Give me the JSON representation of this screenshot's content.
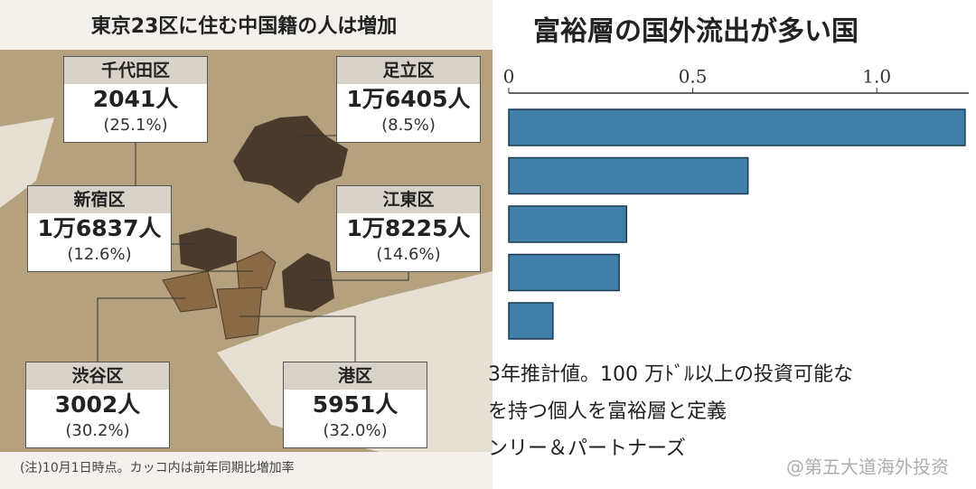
{
  "map": {
    "title": "東京23区に住む中国籍の人は増加",
    "districts": [
      {
        "name": "千代田区",
        "count": "2041人",
        "pct": "(25.1%)"
      },
      {
        "name": "足立区",
        "count": "1万6405人",
        "pct": "(8.5%)"
      },
      {
        "name": "新宿区",
        "count": "1万6837人",
        "pct": "(12.6%)"
      },
      {
        "name": "江東区",
        "count": "1万8225人",
        "pct": "(14.6%)"
      },
      {
        "name": "渋谷区",
        "count": "3002人",
        "pct": "(30.2%)"
      },
      {
        "name": "港区",
        "count": "5951人",
        "pct": "(32.0%)"
      }
    ],
    "note": "(注)10月1日時点。カッコ内は前年同期比増加率"
  },
  "chart_data": {
    "type": "hbar",
    "title": "富裕層の国外流出が多い国",
    "categories": [
      null,
      null,
      null,
      null,
      null
    ],
    "values": [
      1.24,
      0.65,
      0.32,
      0.3,
      0.12
    ],
    "color": "#3f7fa8",
    "xlim": [
      0,
      1.25
    ],
    "xticks": [
      0,
      0.5,
      {
        "value": 1,
        "label": "1.0"
      }
    ],
    "footnotes": [
      "3年推計値。100 万ﾄﾞﾙ以上の投資可能な",
      "を持つ個人を富裕層と定義",
      "ンリー＆パートナーズ"
    ]
  },
  "watermark": "@第五大道海外投资"
}
